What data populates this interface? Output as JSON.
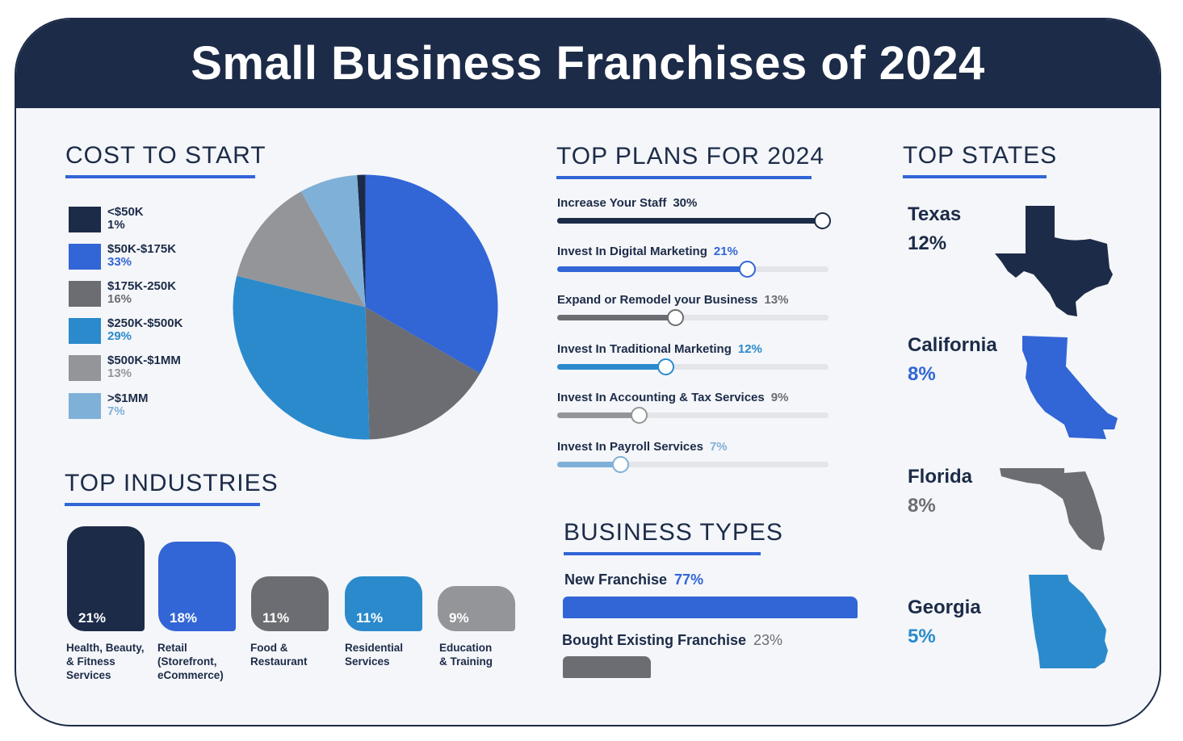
{
  "title": "Small Business Franchises of 2024",
  "colors": {
    "navy": "#1c2b48",
    "blue": "#3265d6",
    "gray": "#6c6d72",
    "mid_blue": "#2b8acc",
    "light_gray": "#949599",
    "light_blue": "#7fb0d8"
  },
  "sections": {
    "cost": "COST TO START",
    "plans": "TOP PLANS FOR 2024",
    "states": "TOP STATES",
    "industries": "TOP INDUSTRIES",
    "business_types": "BUSINESS TYPES"
  },
  "legend": [
    {
      "label": "<$50K",
      "pct": "1%"
    },
    {
      "label": "$50K-$175K",
      "pct": "33%"
    },
    {
      "label": "$175K-250K",
      "pct": "16%"
    },
    {
      "label": "$250K-$500K",
      "pct": "29%"
    },
    {
      "label": "$500K-$1MM",
      "pct": "13%"
    },
    {
      "label": ">$1MM",
      "pct": "7%"
    }
  ],
  "industries": [
    {
      "value": "21%",
      "lines": [
        "Health, Beauty,",
        "& Fitness",
        "Services"
      ]
    },
    {
      "value": "18%",
      "lines": [
        "Retail",
        "(Storefront,",
        "eCommerce)"
      ]
    },
    {
      "value": "11%",
      "lines": [
        "Food &",
        "Restaurant"
      ]
    },
    {
      "value": "11%",
      "lines": [
        "Residential",
        "Services"
      ]
    },
    {
      "value": "9%",
      "lines": [
        "Education",
        "& Training"
      ]
    }
  ],
  "plans": [
    {
      "label": "Increase Your Staff",
      "value": "30%"
    },
    {
      "label": "Invest In Digital Marketing",
      "value": "21%"
    },
    {
      "label": "Expand or Remodel your Business",
      "value": "13%"
    },
    {
      "label": "Invest In Traditional Marketing",
      "value": "12%"
    },
    {
      "label": "Invest In Accounting & Tax Services",
      "value": "9%"
    },
    {
      "label": "Invest In Payroll Services",
      "value": "7%"
    }
  ],
  "business_types": [
    {
      "label": "New Franchise",
      "value": "77%"
    },
    {
      "label": "Bought Existing Franchise",
      "value": "23%"
    }
  ],
  "states": [
    {
      "name": "Texas",
      "value": "12%"
    },
    {
      "name": "California",
      "value": "8%"
    },
    {
      "name": "Florida",
      "value": "8%"
    },
    {
      "name": "Georgia",
      "value": "5%"
    }
  ],
  "chart_data": [
    {
      "type": "pie",
      "title": "COST TO START",
      "categories": [
        "<$50K",
        "$50K-$175K",
        "$175K-250K",
        "$250K-$500K",
        "$500K-$1MM",
        ">$1MM"
      ],
      "values": [
        1,
        33,
        16,
        29,
        13,
        7
      ],
      "colors": [
        "#1c2b48",
        "#3265d6",
        "#6c6d72",
        "#2b8acc",
        "#949599",
        "#7fb0d8"
      ]
    },
    {
      "type": "bar",
      "title": "TOP INDUSTRIES",
      "categories": [
        "Health, Beauty, & Fitness Services",
        "Retail (Storefront, eCommerce)",
        "Food & Restaurant",
        "Residential Services",
        "Education & Training"
      ],
      "values": [
        21,
        18,
        11,
        11,
        9
      ],
      "colors": [
        "#1c2b48",
        "#3265d6",
        "#6c6d72",
        "#2b8acc",
        "#949599"
      ]
    },
    {
      "type": "bar",
      "title": "TOP PLANS FOR 2024",
      "categories": [
        "Increase Your Staff",
        "Invest In Digital Marketing",
        "Expand or Remodel your Business",
        "Invest In Traditional Marketing",
        "Invest In Accounting & Tax Services",
        "Invest In Payroll Services"
      ],
      "values": [
        30,
        21,
        13,
        12,
        9,
        7
      ],
      "xlim": [
        0,
        30
      ],
      "colors": [
        "#1c2b48",
        "#3265d6",
        "#6c6d72",
        "#2b8acc",
        "#949599",
        "#7fb0d8"
      ]
    },
    {
      "type": "bar",
      "title": "BUSINESS TYPES",
      "categories": [
        "New Franchise",
        "Bought Existing Franchise"
      ],
      "values": [
        77,
        23
      ],
      "xlim": [
        0,
        77
      ],
      "colors": [
        "#3265d6",
        "#6c6d72"
      ]
    }
  ]
}
